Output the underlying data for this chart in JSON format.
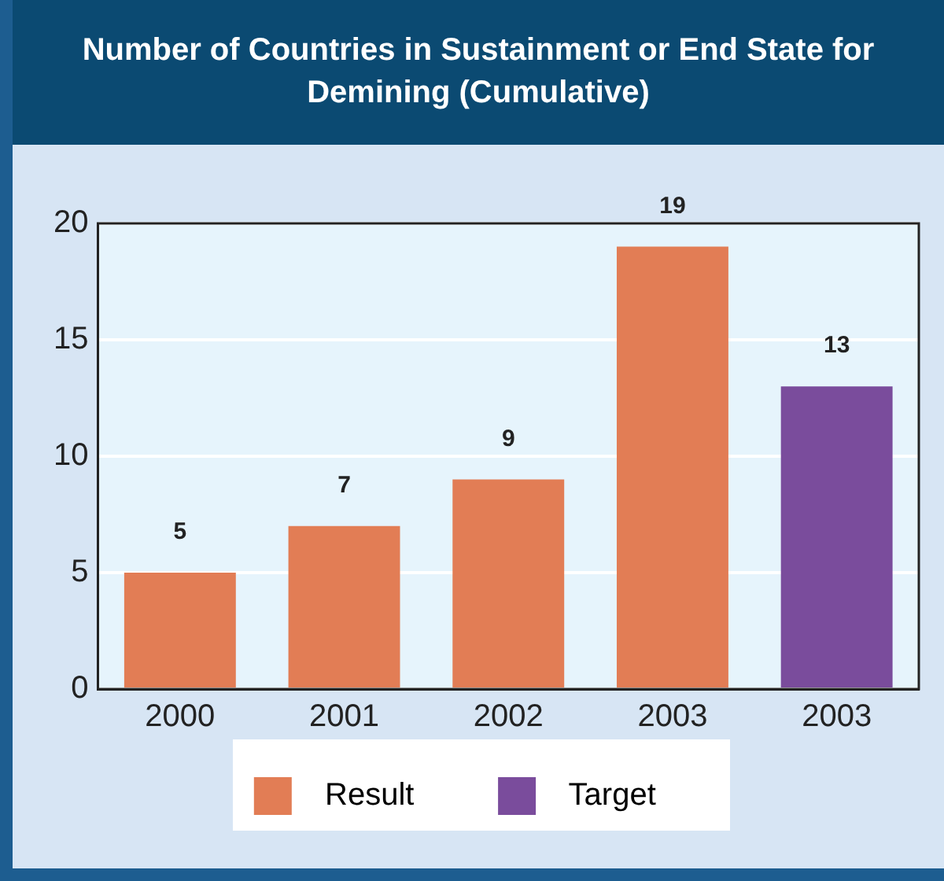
{
  "chart_data": {
    "type": "bar",
    "title": "Number of Countries in Sustainment or End State for Demining (Cumulative)",
    "categories": [
      "2000",
      "2001",
      "2002",
      "2003",
      "2003"
    ],
    "series": [
      {
        "name": "Result",
        "color": "#e27d55",
        "values": [
          5,
          7,
          9,
          19,
          null
        ]
      },
      {
        "name": "Target",
        "color": "#7a4c9c",
        "values": [
          null,
          null,
          null,
          null,
          13
        ]
      }
    ],
    "ylim": [
      0,
      20
    ],
    "yticks": [
      0,
      5,
      10,
      15,
      20
    ],
    "grid": "y",
    "data_labels": true,
    "legend": "bottom"
  }
}
